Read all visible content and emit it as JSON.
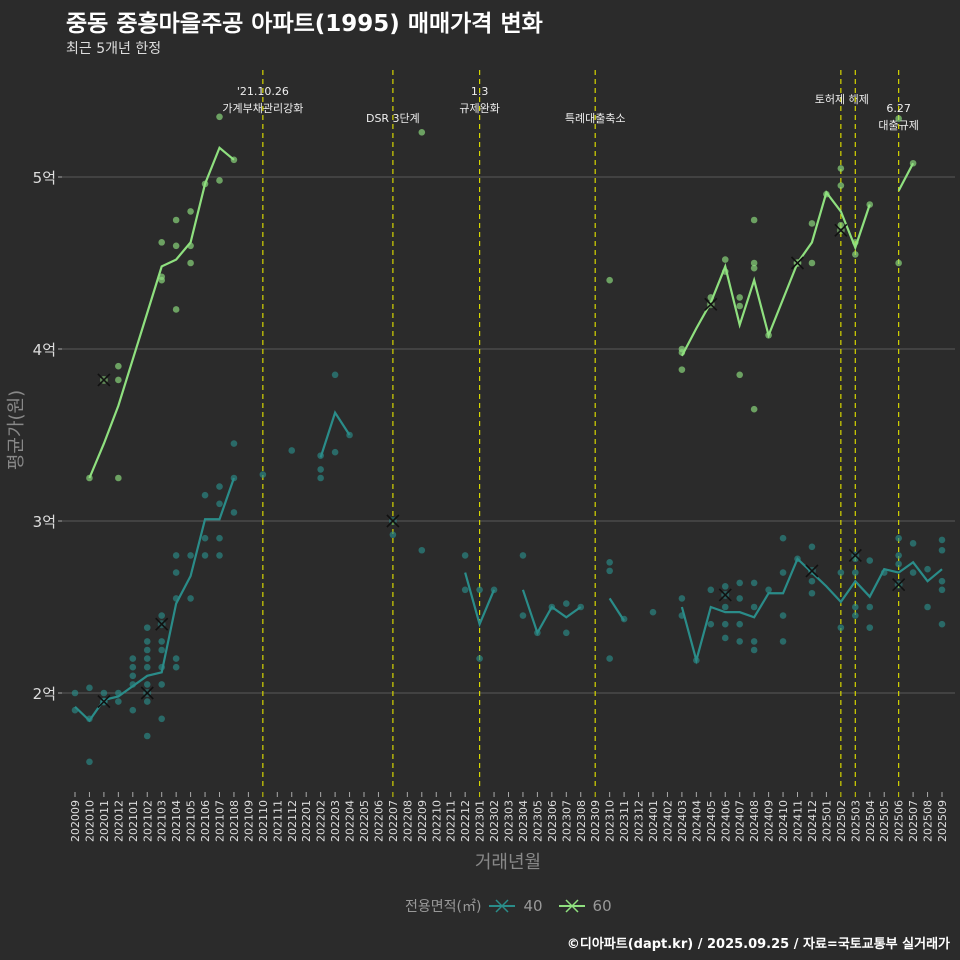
{
  "header": {
    "title": "중동 중흥마을주공 아파트(1995) 매매가격 변화",
    "subtitle": "최근 5개년 한정"
  },
  "legend": {
    "title": "전용면적(㎡)",
    "items": [
      "40",
      "60"
    ]
  },
  "caption": "©디아파트(dapt.kr) / 2025.09.25 / 자료=국토교통부 실거래가",
  "colors": {
    "s40": "#2a8c89",
    "s60": "#8fe07f",
    "vline": "#d6d600",
    "grid": "#5a5a5a",
    "text": "#dddddd"
  },
  "chart_data": {
    "type": "line",
    "title": "중동 중흥마을주공 아파트(1995) 매매가격 변화",
    "xlabel": "거래년월",
    "ylabel": "평균가(원)",
    "ylim": [
      1.44,
      5.65
    ],
    "y_unit": "억",
    "yticks": [
      {
        "v": 2,
        "label": "2억"
      },
      {
        "v": 3,
        "label": "3억"
      },
      {
        "v": 4,
        "label": "4억"
      },
      {
        "v": 5,
        "label": "5억"
      }
    ],
    "months": [
      "202009",
      "202010",
      "202011",
      "202012",
      "202101",
      "202102",
      "202103",
      "202104",
      "202105",
      "202106",
      "202107",
      "202108",
      "202109",
      "202110",
      "202111",
      "202112",
      "202201",
      "202202",
      "202203",
      "202204",
      "202205",
      "202206",
      "202207",
      "202208",
      "202209",
      "202210",
      "202211",
      "202212",
      "202301",
      "202302",
      "202303",
      "202304",
      "202305",
      "202306",
      "202307",
      "202308",
      "202309",
      "202310",
      "202311",
      "202312",
      "202401",
      "202402",
      "202403",
      "202404",
      "202405",
      "202406",
      "202407",
      "202408",
      "202409",
      "202410",
      "202411",
      "202412",
      "202501",
      "202502",
      "202503",
      "202504",
      "202505",
      "202506",
      "202507",
      "202508",
      "202509"
    ],
    "annotations": [
      {
        "month": "202110",
        "lines": [
          "'21.10.26",
          "가계부채관리강화"
        ]
      },
      {
        "month": "202207",
        "lines": [
          "DSR 3단계"
        ]
      },
      {
        "month": "202301",
        "lines": [
          "1.3",
          "규제완화"
        ]
      },
      {
        "month": "202309",
        "lines": [
          "특례대출축소"
        ]
      },
      {
        "month": "202502",
        "lines": [
          "토허제 해제"
        ]
      },
      {
        "month": "202503",
        "lines": []
      },
      {
        "month": "202506",
        "lines": [
          "6.27",
          "대출규제"
        ]
      }
    ],
    "series": [
      {
        "name": "40",
        "color_key": "s40",
        "line": [
          [
            "202009",
            1.92
          ],
          [
            "202010",
            1.84
          ],
          [
            "202011",
            1.96
          ],
          [
            "202012",
            1.98
          ],
          [
            "202101",
            2.04
          ],
          [
            "202102",
            2.1
          ],
          [
            "202103",
            2.12
          ],
          [
            "202104",
            2.52
          ],
          [
            "202105",
            2.68
          ],
          [
            "202106",
            3.01
          ],
          [
            "202107",
            3.01
          ],
          [
            "202108",
            3.25
          ],
          [
            "202202",
            3.37
          ],
          [
            "202203",
            3.63
          ],
          [
            "202204",
            3.5
          ],
          [
            "202212",
            2.7
          ],
          [
            "202301",
            2.4
          ],
          [
            "202302",
            2.6
          ],
          [
            "202304",
            2.6
          ],
          [
            "202305",
            2.35
          ],
          [
            "202306",
            2.5
          ],
          [
            "202307",
            2.44
          ],
          [
            "202308",
            2.5
          ],
          [
            "202310",
            2.55
          ],
          [
            "202311",
            2.42
          ],
          [
            "202403",
            2.5
          ],
          [
            "202404",
            2.19
          ],
          [
            "202405",
            2.5
          ],
          [
            "202406",
            2.47
          ],
          [
            "202407",
            2.47
          ],
          [
            "202408",
            2.44
          ],
          [
            "202409",
            2.58
          ],
          [
            "202410",
            2.58
          ],
          [
            "202411",
            2.78
          ],
          [
            "202412",
            2.7
          ],
          [
            "202501",
            2.62
          ],
          [
            "202502",
            2.53
          ],
          [
            "202503",
            2.65
          ],
          [
            "202504",
            2.56
          ],
          [
            "202505",
            2.72
          ],
          [
            "202506",
            2.7
          ],
          [
            "202507",
            2.76
          ],
          [
            "202508",
            2.65
          ],
          [
            "202509",
            2.72
          ]
        ],
        "markers": [
          [
            "202011",
            1.95
          ],
          [
            "202102",
            2.0
          ],
          [
            "202103",
            2.4
          ],
          [
            "202207",
            3.0
          ],
          [
            "202406",
            2.57
          ],
          [
            "202412",
            2.71
          ],
          [
            "202503",
            2.8
          ],
          [
            "202506",
            2.63
          ]
        ],
        "points": [
          [
            "202009",
            2.0
          ],
          [
            "202009",
            1.9
          ],
          [
            "202010",
            2.03
          ],
          [
            "202010",
            1.85
          ],
          [
            "202010",
            1.6
          ],
          [
            "202011",
            2.0
          ],
          [
            "202011",
            1.95
          ],
          [
            "202012",
            2.0
          ],
          [
            "202012",
            1.95
          ],
          [
            "202101",
            2.2
          ],
          [
            "202101",
            2.15
          ],
          [
            "202101",
            2.1
          ],
          [
            "202101",
            2.05
          ],
          [
            "202101",
            1.9
          ],
          [
            "202102",
            2.38
          ],
          [
            "202102",
            2.3
          ],
          [
            "202102",
            2.25
          ],
          [
            "202102",
            2.2
          ],
          [
            "202102",
            2.15
          ],
          [
            "202102",
            2.05
          ],
          [
            "202102",
            1.95
          ],
          [
            "202102",
            1.75
          ],
          [
            "202103",
            2.45
          ],
          [
            "202103",
            2.3
          ],
          [
            "202103",
            2.25
          ],
          [
            "202103",
            2.15
          ],
          [
            "202103",
            2.05
          ],
          [
            "202103",
            1.85
          ],
          [
            "202104",
            2.8
          ],
          [
            "202104",
            2.7
          ],
          [
            "202104",
            2.55
          ],
          [
            "202104",
            2.2
          ],
          [
            "202104",
            2.15
          ],
          [
            "202105",
            2.8
          ],
          [
            "202105",
            2.55
          ],
          [
            "202106",
            3.15
          ],
          [
            "202106",
            2.9
          ],
          [
            "202106",
            2.8
          ],
          [
            "202107",
            3.2
          ],
          [
            "202107",
            3.1
          ],
          [
            "202107",
            2.9
          ],
          [
            "202107",
            2.8
          ],
          [
            "202108",
            3.45
          ],
          [
            "202108",
            3.25
          ],
          [
            "202108",
            3.05
          ],
          [
            "202110",
            3.27
          ],
          [
            "202112",
            3.41
          ],
          [
            "202202",
            3.38
          ],
          [
            "202202",
            3.3
          ],
          [
            "202202",
            3.25
          ],
          [
            "202203",
            3.85
          ],
          [
            "202203",
            3.4
          ],
          [
            "202204",
            3.5
          ],
          [
            "202207",
            2.92
          ],
          [
            "202209",
            2.83
          ],
          [
            "202212",
            2.8
          ],
          [
            "202212",
            2.6
          ],
          [
            "202301",
            2.6
          ],
          [
            "202301",
            2.2
          ],
          [
            "202302",
            2.6
          ],
          [
            "202304",
            2.8
          ],
          [
            "202304",
            2.45
          ],
          [
            "202305",
            2.35
          ],
          [
            "202306",
            2.5
          ],
          [
            "202307",
            2.52
          ],
          [
            "202307",
            2.35
          ],
          [
            "202308",
            2.5
          ],
          [
            "202310",
            2.76
          ],
          [
            "202310",
            2.71
          ],
          [
            "202310",
            2.2
          ],
          [
            "202311",
            2.43
          ],
          [
            "202401",
            2.47
          ],
          [
            "202403",
            2.55
          ],
          [
            "202403",
            2.45
          ],
          [
            "202404",
            2.19
          ],
          [
            "202405",
            2.6
          ],
          [
            "202405",
            2.4
          ],
          [
            "202406",
            2.62
          ],
          [
            "202406",
            2.5
          ],
          [
            "202406",
            2.4
          ],
          [
            "202406",
            2.32
          ],
          [
            "202407",
            2.64
          ],
          [
            "202407",
            2.55
          ],
          [
            "202407",
            2.4
          ],
          [
            "202407",
            2.3
          ],
          [
            "202408",
            2.64
          ],
          [
            "202408",
            2.5
          ],
          [
            "202408",
            2.3
          ],
          [
            "202408",
            2.25
          ],
          [
            "202409",
            2.6
          ],
          [
            "202410",
            2.9
          ],
          [
            "202410",
            2.7
          ],
          [
            "202410",
            2.45
          ],
          [
            "202410",
            2.3
          ],
          [
            "202411",
            2.78
          ],
          [
            "202412",
            2.85
          ],
          [
            "202412",
            2.65
          ],
          [
            "202412",
            2.58
          ],
          [
            "202502",
            2.7
          ],
          [
            "202502",
            2.38
          ],
          [
            "202503",
            2.78
          ],
          [
            "202503",
            2.7
          ],
          [
            "202503",
            2.5
          ],
          [
            "202503",
            2.45
          ],
          [
            "202504",
            2.77
          ],
          [
            "202504",
            2.5
          ],
          [
            "202504",
            2.38
          ],
          [
            "202505",
            2.7
          ],
          [
            "202506",
            2.9
          ],
          [
            "202506",
            2.8
          ],
          [
            "202506",
            2.75
          ],
          [
            "202507",
            2.87
          ],
          [
            "202507",
            2.7
          ],
          [
            "202508",
            2.72
          ],
          [
            "202508",
            2.5
          ],
          [
            "202509",
            2.89
          ],
          [
            "202509",
            2.83
          ],
          [
            "202509",
            2.65
          ],
          [
            "202509",
            2.6
          ],
          [
            "202509",
            2.4
          ]
        ]
      },
      {
        "name": "60",
        "color_key": "s60",
        "line": [
          [
            "202010",
            3.25
          ],
          [
            "202011",
            3.45
          ],
          [
            "202012",
            3.67
          ],
          [
            "202101",
            3.94
          ],
          [
            "202102",
            4.21
          ],
          [
            "202103",
            4.48
          ],
          [
            "202104",
            4.52
          ],
          [
            "202105",
            4.62
          ],
          [
            "202106",
            4.96
          ],
          [
            "202107",
            5.17
          ],
          [
            "202108",
            5.1
          ],
          [
            "202209",
            5.26
          ],
          [
            "202310",
            4.4
          ],
          [
            "202403",
            3.96
          ],
          [
            "202404",
            4.12
          ],
          [
            "202405",
            4.27
          ],
          [
            "202406",
            4.48
          ],
          [
            "202407",
            4.14
          ],
          [
            "202408",
            4.4
          ],
          [
            "202409",
            4.08
          ],
          [
            "202410",
            4.29
          ],
          [
            "202411",
            4.5
          ],
          [
            "202412",
            4.62
          ],
          [
            "202501",
            4.91
          ],
          [
            "202502",
            4.8
          ],
          [
            "202503",
            4.59
          ],
          [
            "202504",
            4.84
          ],
          [
            "202506",
            4.92
          ],
          [
            "202507",
            5.08
          ]
        ],
        "markers": [
          [
            "202011",
            3.82
          ],
          [
            "202405",
            4.26
          ],
          [
            "202411",
            4.5
          ],
          [
            "202502",
            4.69
          ]
        ],
        "points": [
          [
            "202010",
            3.25
          ],
          [
            "202012",
            3.9
          ],
          [
            "202012",
            3.82
          ],
          [
            "202012",
            3.25
          ],
          [
            "202103",
            4.62
          ],
          [
            "202103",
            4.42
          ],
          [
            "202103",
            4.4
          ],
          [
            "202104",
            4.75
          ],
          [
            "202104",
            4.6
          ],
          [
            "202104",
            4.23
          ],
          [
            "202105",
            4.8
          ],
          [
            "202105",
            4.6
          ],
          [
            "202105",
            4.5
          ],
          [
            "202106",
            4.96
          ],
          [
            "202107",
            5.35
          ],
          [
            "202107",
            4.98
          ],
          [
            "202108",
            5.1
          ],
          [
            "202209",
            5.26
          ],
          [
            "202310",
            4.4
          ],
          [
            "202403",
            4.0
          ],
          [
            "202403",
            3.98
          ],
          [
            "202403",
            3.88
          ],
          [
            "202405",
            4.3
          ],
          [
            "202406",
            4.52
          ],
          [
            "202406",
            4.45
          ],
          [
            "202407",
            4.3
          ],
          [
            "202407",
            4.25
          ],
          [
            "202407",
            3.85
          ],
          [
            "202408",
            4.75
          ],
          [
            "202408",
            4.5
          ],
          [
            "202408",
            4.47
          ],
          [
            "202408",
            3.65
          ],
          [
            "202409",
            4.08
          ],
          [
            "202411",
            4.5
          ],
          [
            "202412",
            4.73
          ],
          [
            "202412",
            4.5
          ],
          [
            "202501",
            4.9
          ],
          [
            "202502",
            5.05
          ],
          [
            "202502",
            4.95
          ],
          [
            "202502",
            4.72
          ],
          [
            "202503",
            4.55
          ],
          [
            "202503",
            4.62
          ],
          [
            "202504",
            4.84
          ],
          [
            "202506",
            5.34
          ],
          [
            "202506",
            4.5
          ],
          [
            "202507",
            5.08
          ]
        ]
      }
    ]
  }
}
